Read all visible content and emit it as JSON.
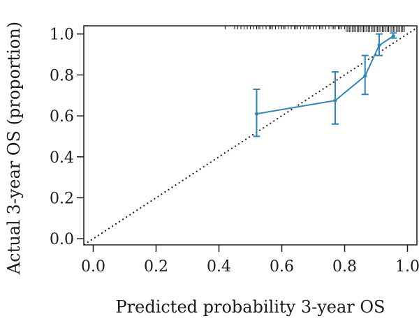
{
  "chart_data": {
    "type": "line",
    "xlabel": "Predicted probability 3-year OS",
    "ylabel": "Actual 3-year OS (proportion)",
    "xlim": [
      -0.03,
      1.03
    ],
    "ylim": [
      -0.03,
      1.04
    ],
    "x_ticks": [
      "0.0",
      "0.2",
      "0.4",
      "0.6",
      "0.8",
      "1.0"
    ],
    "y_ticks": [
      "0.0",
      "0.2",
      "0.4",
      "0.6",
      "0.8",
      "1.0"
    ],
    "grid": false,
    "legend": "none",
    "reference_line": {
      "style": "dotted",
      "from": [
        0,
        0
      ],
      "to": [
        1,
        1
      ]
    },
    "series": [
      {
        "color": "#2f86b6",
        "points": [
          {
            "x": 0.52,
            "y": 0.61,
            "lower": 0.5,
            "upper": 0.73
          },
          {
            "x": 0.77,
            "y": 0.675,
            "lower": 0.56,
            "upper": 0.815
          },
          {
            "x": 0.865,
            "y": 0.795,
            "lower": 0.705,
            "upper": 0.895
          },
          {
            "x": 0.91,
            "y": 0.945,
            "lower": 0.895,
            "upper": 1.0
          },
          {
            "x": 0.955,
            "y": 0.99,
            "lower": 0.98,
            "upper": 1.005
          }
        ]
      }
    ],
    "rug": [
      0.42,
      0.45,
      0.46,
      0.47,
      0.48,
      0.49,
      0.5,
      0.51,
      0.52,
      0.525,
      0.53,
      0.54,
      0.55,
      0.56,
      0.565,
      0.57,
      0.58,
      0.59,
      0.6,
      0.605,
      0.61,
      0.62,
      0.63,
      0.64,
      0.645,
      0.65,
      0.66,
      0.67,
      0.68,
      0.685,
      0.69,
      0.7,
      0.71,
      0.72,
      0.725,
      0.73,
      0.74,
      0.75,
      0.76,
      0.765,
      0.77,
      0.78,
      0.785,
      0.79,
      0.8,
      0.805,
      0.81,
      0.815,
      0.82,
      0.825,
      0.83,
      0.835,
      0.84,
      0.845,
      0.85,
      0.855,
      0.86,
      0.865,
      0.87,
      0.875,
      0.88,
      0.885,
      0.89,
      0.895,
      0.9,
      0.905,
      0.91,
      0.915,
      0.92,
      0.925,
      0.93,
      0.935,
      0.94,
      0.945,
      0.95,
      0.955,
      0.96,
      0.965,
      0.97,
      0.975,
      0.98,
      0.985,
      0.99
    ]
  }
}
